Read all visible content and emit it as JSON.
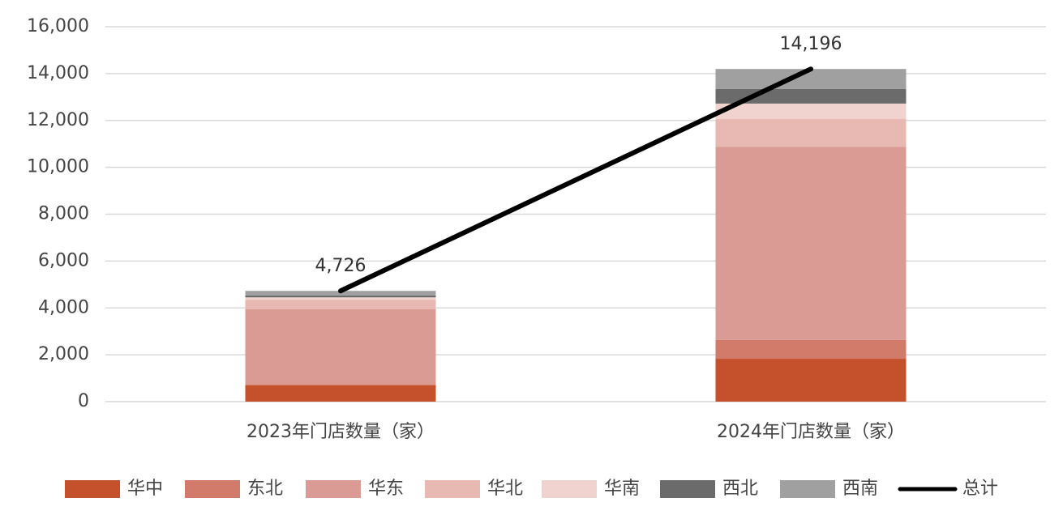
{
  "chart_data": {
    "type": "stacked-bar-line",
    "categories": [
      "2023年门店数量（家）",
      "2024年门店数量（家）"
    ],
    "series": [
      {
        "name": "华中",
        "color": "#c5512c",
        "values": [
          700,
          1830
        ]
      },
      {
        "name": "东北",
        "color": "#d27b6a",
        "values": [
          50,
          800
        ]
      },
      {
        "name": "华东",
        "color": "#d99b94",
        "values": [
          3200,
          8250
        ]
      },
      {
        "name": "华北",
        "color": "#e7b9b2",
        "values": [
          400,
          1180
        ]
      },
      {
        "name": "华南",
        "color": "#f0d3ce",
        "values": [
          100,
          660
        ]
      },
      {
        "name": "西北",
        "color": "#6b6b6b",
        "values": [
          80,
          620
        ]
      },
      {
        "name": "西南",
        "color": "#a0a0a0",
        "values": [
          196,
          856
        ]
      },
      {
        "name": "总计",
        "color": "#000000",
        "type": "line",
        "values": [
          4726,
          14196
        ],
        "value_labels": [
          "4,726",
          "14,196"
        ]
      }
    ],
    "ylim": [
      0,
      16000
    ],
    "yticks": [
      0,
      {
        "value": 2000,
        "label": "2,000"
      },
      {
        "value": 4000,
        "label": "4,000"
      },
      {
        "value": 6000,
        "label": "6,000"
      },
      {
        "value": 8000,
        "label": "8,000"
      },
      {
        "value": 10000,
        "label": "10,000"
      },
      {
        "value": 12000,
        "label": "12,000"
      },
      {
        "value": 14000,
        "label": "14,000"
      },
      {
        "value": 16000,
        "label": "16,000"
      }
    ],
    "grid": true,
    "legend": "bottom"
  }
}
